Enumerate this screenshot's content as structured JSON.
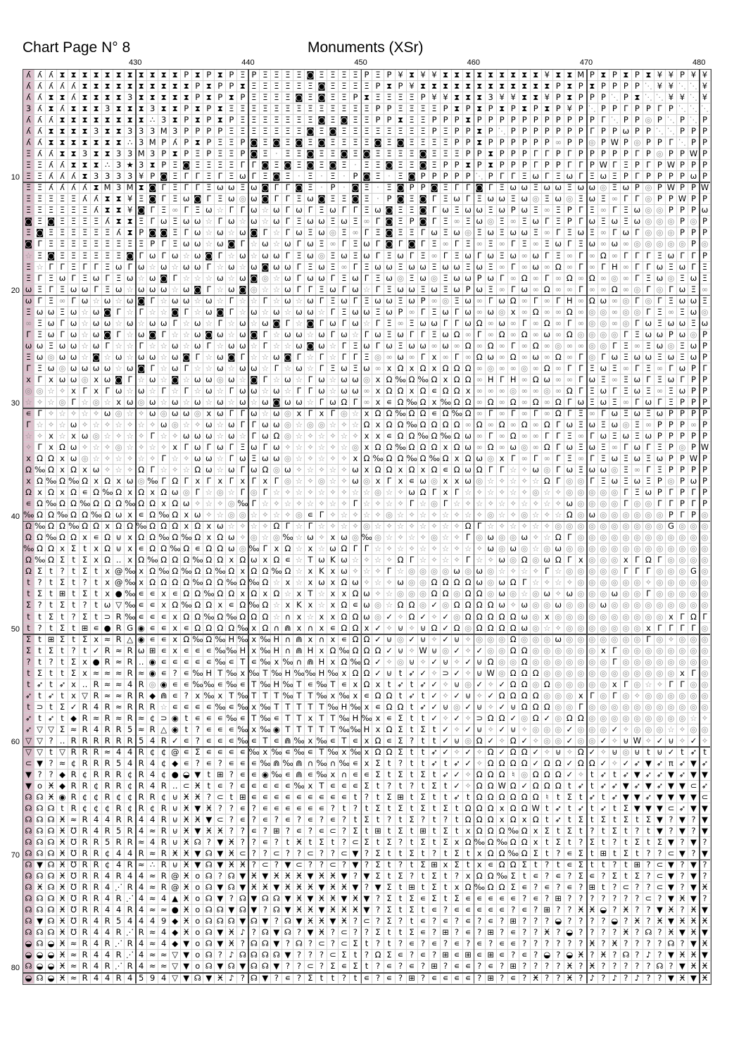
{
  "header": {
    "page_title": "Chart Page N° 8",
    "chart_title": "Monuments (XSr)"
  },
  "chart_data": {
    "type": "table",
    "description_kind": "cross-stitch symbol grid",
    "column_labels": [
      "430",
      "440",
      "450",
      "460",
      "470",
      "480"
    ],
    "row_labels": [
      "10",
      "20",
      "30",
      "40",
      "50",
      "60",
      "70",
      "80"
    ],
    "highlight_color": "#dcc0cc",
    "symbol_key": {
      "a": "ʎ",
      "X": "⧗",
      "I": "Ӿ",
      "3": "3",
      "P": "P",
      "E": "Ξ",
      "S": "◙",
      "G": "Γ",
      "w": "ω",
      "o": "◎",
      "i": "∞",
      "s": "☆",
      "k": "★",
      ".": "·",
      ":": "∴",
      "Y": "¥",
      "M": "M",
      "d": "⋱",
      "W": "W",
      "H": "H",
      "O": "Ω",
      "q": "‰",
      "x": "x",
      "f": "✧",
      "c": "∊",
      "U": "⊍",
      "Z": "Σ",
      "?": "?",
      "B": "⊞",
      "b": "●",
      "v": "▽",
      "D": "⊃",
      "A": "△",
      "r": "◉",
      "@": "@",
      "n": "∩",
      "N": "⋒",
      "T": "T",
      "K": "K",
      "e": "≈",
      "y": "➶",
      "j": "◆",
      "h": "✓",
      "Q": "‥",
      "L": "G",
      "t": "t",
      "R": "R",
      "4": "4",
      "5": "5",
      "9": "9",
      "C": "¢",
      "z": "⊂",
      "F": "▼",
      "m": "◒",
      "p": "♪",
      "J": "☊",
      "l": "o",
      "&": "℧",
      "/": "⋰",
      "^": "▲",
      "#": "♮",
      "!": "π"
    },
    "light_symbols": "osfid.",
    "rows": [
      "aaaXXXXXXXXXXXPXPXPEPEEEESEEEEPEPYXYYXXXXXXXXXYXXMPXPXPXYYPYY",
      "aaaaaXXXXXXXXXXPXPPXEEEEEESEEEEPXPYXXXXXXXXXXXXPXPXPPPPdYYddY",
      "aaXXaXXXX3XXXXXPXPXPEEEESESEEPXEEEEPYYXXX3YYXXYPXPPPdPXddYYdY",
      "3aXaXXX3XXX3XXPXPXEEEEEEEEEEEEEPPEEEEPXPXPXPXPXPYPdPPGPPGPddd",
      "aaaXXXXXXXX:3XPXPXPEEEEEEESESEEPPXEEPPPXPPPPPPPPPPPGdPPoPdPdP",
      "aaXXXX3XX333M3PPPPEEEEEEESESEEEEEEEEPEPPXPdPPPPPPPGPPwPPddPPP",
      "aaXXXXXXX:3MPaPXPEEPSESESESEEEESESEEEEPPXPPPPPPiPPoPWPoPPGdPP",
      "EaaXX3XX33M3PXPEPEEPSE.EESEESESEEEESEEEPPXPPPGGPGPPPPPGPoPPWP",
      "EEaaXXX:3k3XPESEEEEGGSESESESE.EESEESEPPXPXPPPGPPGGPWGEPGPWPPP",
      "EEaaaX3333YPSEGGEGEwGESE.E.E.PSE.ESPPPPPdPGGEwGEwGEwEPGPPPPwP",
      "EEaaaaXM3MXSGEGGEwwEwSGGSE.P.SE.ESPPSEGGSGEwwEwwEwwoEwPoPWPPW",
      "EEEEEaaXXYESGEwSGEwowSGGEwSEESE.PSESGEwGEwwEwoEwoEwEiGGoPPWPP",
      "EEEEEEaXXYSGEiGEwsGGwswGwGEwGGEwSEESGwEwwEwPwEiEPGEiGEwooPPPw",
      "SESEEEEaXXEGwEwwsGwswswGEwwEwEiGSEPSGEiEwoEiEwGEPGwEwEwoooPoP",
      "ESEEEEEEaXPSSEGwswswSGsGwEwoEiGESEEGwEwoEwEwwEiGEwEiGwGoooPPP",
      "SGEEEEEEEEEPGEwwswSGswswGwEiGEwGSGSGEiGEiEiGEiEwGEwiwioooooPo",
      "sESEEEEEESGwGwswSGswswwGEwoEwEwGEwGEiGEwGwEwiwGEiGiOiGGGEwGGP",
      "EsGGEGGEwGwswswwGswswSwwGEwEiGEwwEwwEwwEwEiGiwiOiGiGHiGGwEwGE",
      "EGEwGEwGEwswSGssswswSoswGwwGEwGEwoEwoEwwPwGiOiGiOiOioiGEwoEwE",
      "wEGEwwGEwswwwswSGswSosswGGEwGwsGEwwEwEwPwEiGwiOiiGiiOioGoGwEi",
      "wGEiGwswswSGswwswsGssGswswGEwGEwwEwPioEwiGwOiGiGHiOwioGoGEwwE",
      "EwwEwswSGsGssSGswSGswswswwsGEwwEwPiGEwGwiwoxiOiiOiooiooGEiEwo",
      "iEwGwswwswswwGswsGswswSGsSGwGwsGEiEwwGGwOiwiGiOiGiooioGwEwwEw",
      "GEwGwswSGswSGsswSwswSGswwswGwsGwEwGGEwOiGiOiOiwiOooooGEwwPwoP",
      "wwEwwswGssGsswswGswwsGsswSwsGEwGwEwwiwiOiOiGiOioiiooGEiEwoEwP",
      "EwowwsSswswwswSGswSGsswSGsGsGGEoiwiGxiGiOwiOiwiOiGoGwEwwEwEwP",
      "GEwowwwwswSGswGsswswwsGswsGEwEwixOxOxOOOioiioiOiGGEwEiGEiGwPG",
      "xGxwwoxwSGswsSswwowsSGswsGwswwoxOqOqOxOOiHGHiOwiiGwEiEwGEwGPP",
      "oosfxGxGwswsGsGswsGwwswsGGwswwixOOxOcOOxiiioiioiOGEwGEwEiEwPP",
      "sfsoGsosxwowswswswswswSwwsGwOGixcOqOxqOOiOiOiOiOGwEwEiGwGEPPP",
      "cGfsfsfwosfwowwoxwGGwswoxGxGosxOOqOOcOqOiGiGiGiOGEiGwEwEwPPPP",
      "GsfswfsfsfsfwosfwswGGwwosoosfsOxOOqOOOOiOiOiOiOGwEwEwoEiPPPiP",
      "sfxsxwosfsfGsfwwwswsGwOosfsfsfxxcOOqOqOwiGiOiiGGEiGwEwEwPPPPP",
      "fGxOwfsfosfsfxGwGwGEwGwfsfsfsoxOOqOOOxOwiOiwoiOGwEwEiGwGEPoPW",
      "xOOxwosfsfsfGsfwwsGwEwwosfsffxOqOOqOqOxOwoxGiGiGEiGEwEwEwPPWP",
      "OqOxOxwfsfOGsfsOwswGwOowfsfsfwxOOxOxOcOwOGGsfwoGwEwwoEiGEPPPP",
      "xOqOqOxOxwoqGOGxGxGxGxGosfosfwoxGxcwoxxwosfsfsOGooGEwEwEPoPwP",
      "OxOxOcOqOxOxOwoGsosGoGsfsfsffssosfwOGxGsfsfsfosfoooooGEwPGPGP",
      "cOqOOqOOOqOOxOwfsfoqGsfsfsfsfGsfsfGsoGsfsfsfsfsfwooooGooGGPGP",
      "qOOqOOqOwxcOqOxwfsoosfsfocGfsfsfosfsfsfsfosfosfsOowooooooPGPo",
      "OqOOqOOxOOqOOOxOxwsfsfOGsGsfsfosfsfsfsfOGsfsfsfooooooooooLooo",
      "OOqOOxcOUxOOqOqOxOwfosoqswfxwoqosfsfosfGowoowfsOGoooooooooooo",
      "qOOxZtxOUxcOOqOcOOwoqGxOsxswOGGsfsfsfsfsfwowosowooooooooooooo",
      "OqOZtZxOQxOqOOOqOOxOwxOcsTwKwsfsfOGsfsfGsfwoOowOGxoooxGOGoooo",
      "OZt?tZtx@qxOqOqOOqOxOOqOsxKxwfsfGsoooowowosfsfGsoooooGGGoooLo",
      "t?tZt?tx@qxOOOOqOOqOqOsxsxwxOwfsfwooOOOOwowOGsfsfoooooofooooo",
      "tZtBtZtxbqccxcOOqOOxOxOsxTsxxOwfsoooOOoOOowosowfwooowooGooooo",
      "Z?tZt?twvqccxOqOOxcOqOsxKxsxOcwosOOohoOOOOwfwoowooowooooooooo",
      "ttZt?ZtDRqcccxOOqOqOOOsnxsxxOOwohfOhfhoOOOOOwoxooooooooooxGOG",
      "t?tZtBcbRLrccxcOOOOqxOnNxnxcOOxhfUfUOhOoOOOOwosfoooooooxGGGGo",
      "ZtBZtZxeRArccxOqOqHqxqHnNxnxcOOhUohUfhUfoooOooowoooooooGofooo",
      "ZtZt?thReRwBcxcccqqHxqHnNHxOqOOOhUfWUohfhooOOooooooxGoooooooo",
      "?t?tZxbReRQrcccccqcTcqxqnNHxOqOhfoUfhUfhUOooOoooooooGoooooooo",
      "tZttZxeeeRerc?cqHTqxqTqHqqHqxOOhUtyhfDhfUWoOOOooooooooooooxGo",
      "tytyxQRee4RorccqqcqcTqHqTcqTcxOxtytyhfUohfhOOoOoooooxGosfGGoo",
      "ytytxvReeRRjNc?xqxTqTTTqTTqxqxcOOtythfhUfhOOOOoooxGoGofoooooo",
      "tDtZhR4ReRRRsccccqcqxqTTTTTqHqxcOOtyhUohUfhUOOOooGooooooooooo",
      "ytytjReReReCDrtcccqcTqcTTxTTqHqxcZtthfhfDOOhoOhoOOooooooooosf",
      "yvvZeR4RR5eRArt?cccqxqrTTTTTqqHxOZtZthfhUfhUfooohooohfooosfoo",
      "vv?QRRRRRR54Rhc?cccqcTcNqxqcTcxOcZ?tthUoOhfOhfoohoohfUWfhUfhf",
      "vvtvRRRe44RCC@cZccccqxqcqcTqxqxOOZttyhfhfOhOOhfUfOhfUoUtUhtyt",
      "zF?eCRRR54R4Cjc?c?cccqNqNnqnqcxZt?ttytyhfOOOOhOOhOOhfhyFy!yFy",
      "F??jRCRRRCR4CbmFtB?ccrqcNcqxnccZtZtZtyhfOOO#oOOOhftytyFyyFyFF",
      "FlIjRRCRRCR4RQzItc?cccccqxTcccZt?t?tZthfOOWOhOOOtytyyFyFyFFzy",
      "JJIrRCCRCCRRCUII?ztBccccccccct?tZBtZttytOOOOOO#tZtytyFFyFFFFz",
      "JJJtRCCCRCRCRUIFI??c?cccccc?t?tZtZtZtZtOOOxOOWtytytytZFFFzyFF",
      "JJJIeR44RR44RUIIFz?c?c?c?c?c?tZt?tZ?t?tOOOxOxOtytZtZtZtZF?F?F",
      "JJJI&R4R5R4eRUIFII??c?B?c?cz?ZtBtZtBtZtxOOOqOxZtZt?tZt?tF?F?F",
      "JJJI&RR5RRe4RUIJ?FI??c?tItZt?zZtZ?tZtZxOqOqOOxtZt?Zt?tZtZF?F?",
      "JJJI&RRC44ReRIIFJFIz??z??z??zF?ZttZt?tZtxOOqOZt?cZtBtZt??zF?F",
      "JFJI&RRC4Re:RUIFJFII?z?Fz??z?F?Zt?tZBxZtxcOOZt?tcZtt?tB?zF?F?",
      "JJJI&RR4R44eR@IlJ?JFIFIIIFIIF?FZtZ?tZt?xOOqZtc?c?Zc?ZtZ?zF?F?",
      "JIJI&RR4/R4eR@IlJFJFIIFIIIFIIF?FZtBtZtxOqOOZc?c?c?Bt?z??zF?FI",
      "JJJI&RR4R/4e4^IlJF?JFJJFIFIIFIF?ZtZcZtZccccc?c?B???????z?FIF?",
      "JJJI&RR44R4eebIlJJFJF?JFIIFIIIF?ZtZtc?ccccc?c?B??IIm?I??FI?IF",
      "JFJI&R4R54449jIlJJJFJF?JFIIFI?z?Z?tc?c?c?c?B???m????m?I?IFIII",
      "JJJI&R44R/Re4jIlJFIp?JFJ?FI?z??ZttZc?B?c?B?c??I?m????I?J?IFIF",
      "mJmIeR4R/R4e4jFlJFI?JJF?J?z?zZt?t?c?c?c?c?cc??????I?I????J?FI",
      "mmmIeR44R/4eevFlJ?pJJJJF???zZt?OZc?c?BcBcBc?c?m?mI?I?J?p?FIIF",
      "JmmIeR4R/R4eevFlJFJFJJF??z?ZcZt?c?c?B?cc?c?B????I?I?????J?FII",
      "mJmIeR44R4594vFJFIp?JF?c?Ztt?tc?c?B?cccc?B?c?I??I?p?p?p??FIFI"
    ]
  }
}
